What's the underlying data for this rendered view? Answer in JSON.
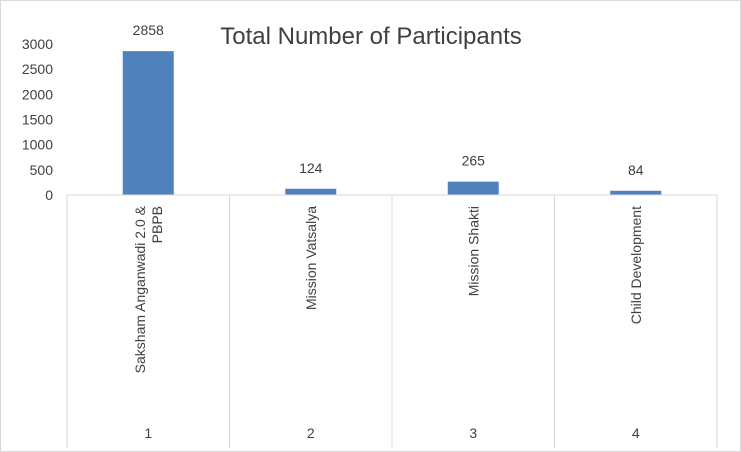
{
  "chart_data": {
    "type": "bar",
    "title": "Total Number of Participants",
    "categories": [
      "Saksham Anganwadi 2.0 & PBPB",
      "Mission Vatsalya",
      "Mission Shakti",
      "Child Development"
    ],
    "category_lines": [
      [
        "Saksham Anganwadi 2.0 &",
        "PBPB"
      ],
      [
        "Mission Vatsalya"
      ],
      [
        "Mission Shakti"
      ],
      [
        "Child Development"
      ]
    ],
    "category_index": [
      "1",
      "2",
      "3",
      "4"
    ],
    "values": [
      2858,
      124,
      265,
      84
    ],
    "data_labels": [
      "2858",
      "124",
      "265",
      "84"
    ],
    "yticks": [
      "0",
      "500",
      "1000",
      "1500",
      "2000",
      "2500",
      "3000"
    ],
    "ylim": [
      0,
      3000
    ],
    "grid": false,
    "legend": "none",
    "bar_color": "#4f81bd"
  }
}
